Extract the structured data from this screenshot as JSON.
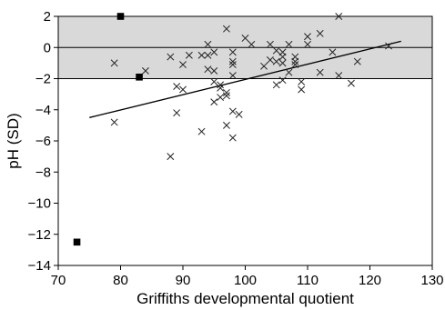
{
  "chart_data": {
    "type": "scatter",
    "title": "",
    "xlabel": "Griffiths developmental quotient",
    "ylabel": "pH (SD)",
    "xlim": [
      70,
      130
    ],
    "ylim": [
      -14,
      2
    ],
    "xticks": [
      70,
      80,
      90,
      100,
      110,
      120,
      130
    ],
    "yticks": [
      2,
      0,
      -2,
      -4,
      -6,
      -8,
      -10,
      -12,
      -14
    ],
    "x_tick_labels": [
      "70",
      "80",
      "90",
      "100",
      "110",
      "120",
      "130"
    ],
    "y_tick_labels": [
      "2",
      "0",
      "−2",
      "−4",
      "−6",
      "−8",
      "−10",
      "−12",
      "−14"
    ],
    "grid": false,
    "legend": "none",
    "reference_band": {
      "y_range": [
        -2,
        2
      ],
      "fill": "#d9d9d9",
      "center_line": 0
    },
    "regression_line": {
      "x": [
        75,
        125
      ],
      "y": [
        -4.5,
        0.4
      ]
    },
    "series": [
      {
        "marker": "x",
        "color": "#222222",
        "points": [
          [
            79,
            -1.0
          ],
          [
            79,
            -4.8
          ],
          [
            84,
            -1.5
          ],
          [
            88,
            -0.6
          ],
          [
            88,
            -7.0
          ],
          [
            89,
            -2.5
          ],
          [
            89,
            -4.2
          ],
          [
            90,
            -1.1
          ],
          [
            90,
            -2.7
          ],
          [
            91,
            -0.5
          ],
          [
            93,
            -0.5
          ],
          [
            93,
            -5.4
          ],
          [
            94,
            0.2
          ],
          [
            94,
            -0.5
          ],
          [
            94,
            -1.4
          ],
          [
            95,
            -0.3
          ],
          [
            95,
            -1.5
          ],
          [
            95,
            -2.2
          ],
          [
            95,
            -3.5
          ],
          [
            96,
            -2.4
          ],
          [
            96,
            -2.6
          ],
          [
            96,
            -3.2
          ],
          [
            97,
            1.2
          ],
          [
            97,
            -2.9
          ],
          [
            97,
            -3.1
          ],
          [
            97,
            -5.0
          ],
          [
            98,
            -0.3
          ],
          [
            98,
            -0.9
          ],
          [
            98,
            -1.1
          ],
          [
            98,
            -1.8
          ],
          [
            98,
            -4.1
          ],
          [
            98,
            -5.8
          ],
          [
            99,
            -4.3
          ],
          [
            100,
            0.6
          ],
          [
            101,
            0.2
          ],
          [
            103,
            -1.2
          ],
          [
            104,
            0.2
          ],
          [
            104,
            -0.8
          ],
          [
            105,
            -0.2
          ],
          [
            105,
            -0.9
          ],
          [
            105,
            -2.4
          ],
          [
            106,
            -0.3
          ],
          [
            106,
            -0.6
          ],
          [
            106,
            -1.0
          ],
          [
            106,
            -2.1
          ],
          [
            107,
            0.2
          ],
          [
            107,
            -1.6
          ],
          [
            108,
            -0.6
          ],
          [
            108,
            -0.9
          ],
          [
            108,
            -1.1
          ],
          [
            109,
            -2.2
          ],
          [
            109,
            -2.7
          ],
          [
            110,
            0.7
          ],
          [
            110,
            0.2
          ],
          [
            112,
            0.9
          ],
          [
            112,
            -1.6
          ],
          [
            114,
            -0.3
          ],
          [
            115,
            2.0
          ],
          [
            115,
            -1.8
          ],
          [
            117,
            -2.3
          ],
          [
            118,
            -0.9
          ],
          [
            123,
            0.1
          ]
        ]
      },
      {
        "marker": "square",
        "color": "#000000",
        "points": [
          [
            80,
            2.0
          ],
          [
            83,
            -1.9
          ],
          [
            73,
            -12.5
          ]
        ]
      }
    ]
  }
}
